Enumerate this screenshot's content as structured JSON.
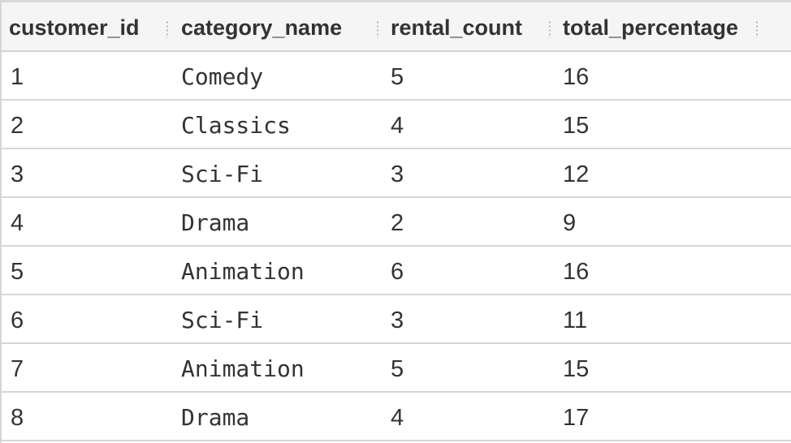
{
  "table": {
    "columns": [
      "customer_id",
      "category_name",
      "rental_count",
      "total_percentage"
    ],
    "rows": [
      [
        "1",
        "Comedy",
        "5",
        "16"
      ],
      [
        "2",
        "Classics",
        "4",
        "15"
      ],
      [
        "3",
        "Sci-Fi",
        "3",
        "12"
      ],
      [
        "4",
        "Drama",
        "2",
        "9"
      ],
      [
        "5",
        "Animation",
        "6",
        "16"
      ],
      [
        "6",
        "Sci-Fi",
        "3",
        "11"
      ],
      [
        "7",
        "Animation",
        "5",
        "15"
      ],
      [
        "8",
        "Drama",
        "4",
        "17"
      ]
    ]
  }
}
